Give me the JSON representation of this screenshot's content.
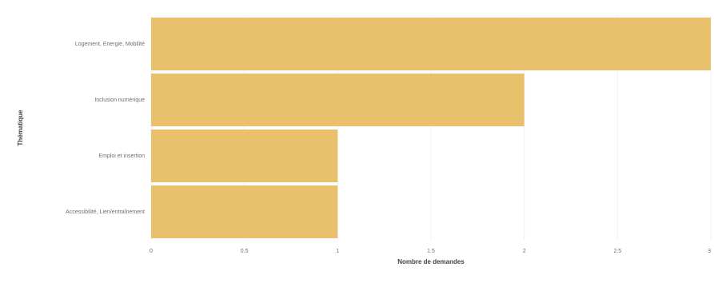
{
  "chart_data": {
    "type": "bar",
    "orientation": "horizontal",
    "title": "",
    "categories": [
      "Logement, Energie, Mobilité",
      "Inclusion numérique",
      "Emploi et insertion",
      "Accessibilité, Lien/entraînement"
    ],
    "values": [
      3,
      2,
      1,
      1
    ],
    "xlabel": "Nombre de demandes",
    "ylabel": "Thématique",
    "xlim": [
      0,
      3
    ],
    "x_ticks": [
      "0",
      "0.5",
      "1",
      "1.5",
      "2",
      "2.5",
      "3"
    ],
    "grid": true,
    "bar_color": "#e9c06c"
  }
}
